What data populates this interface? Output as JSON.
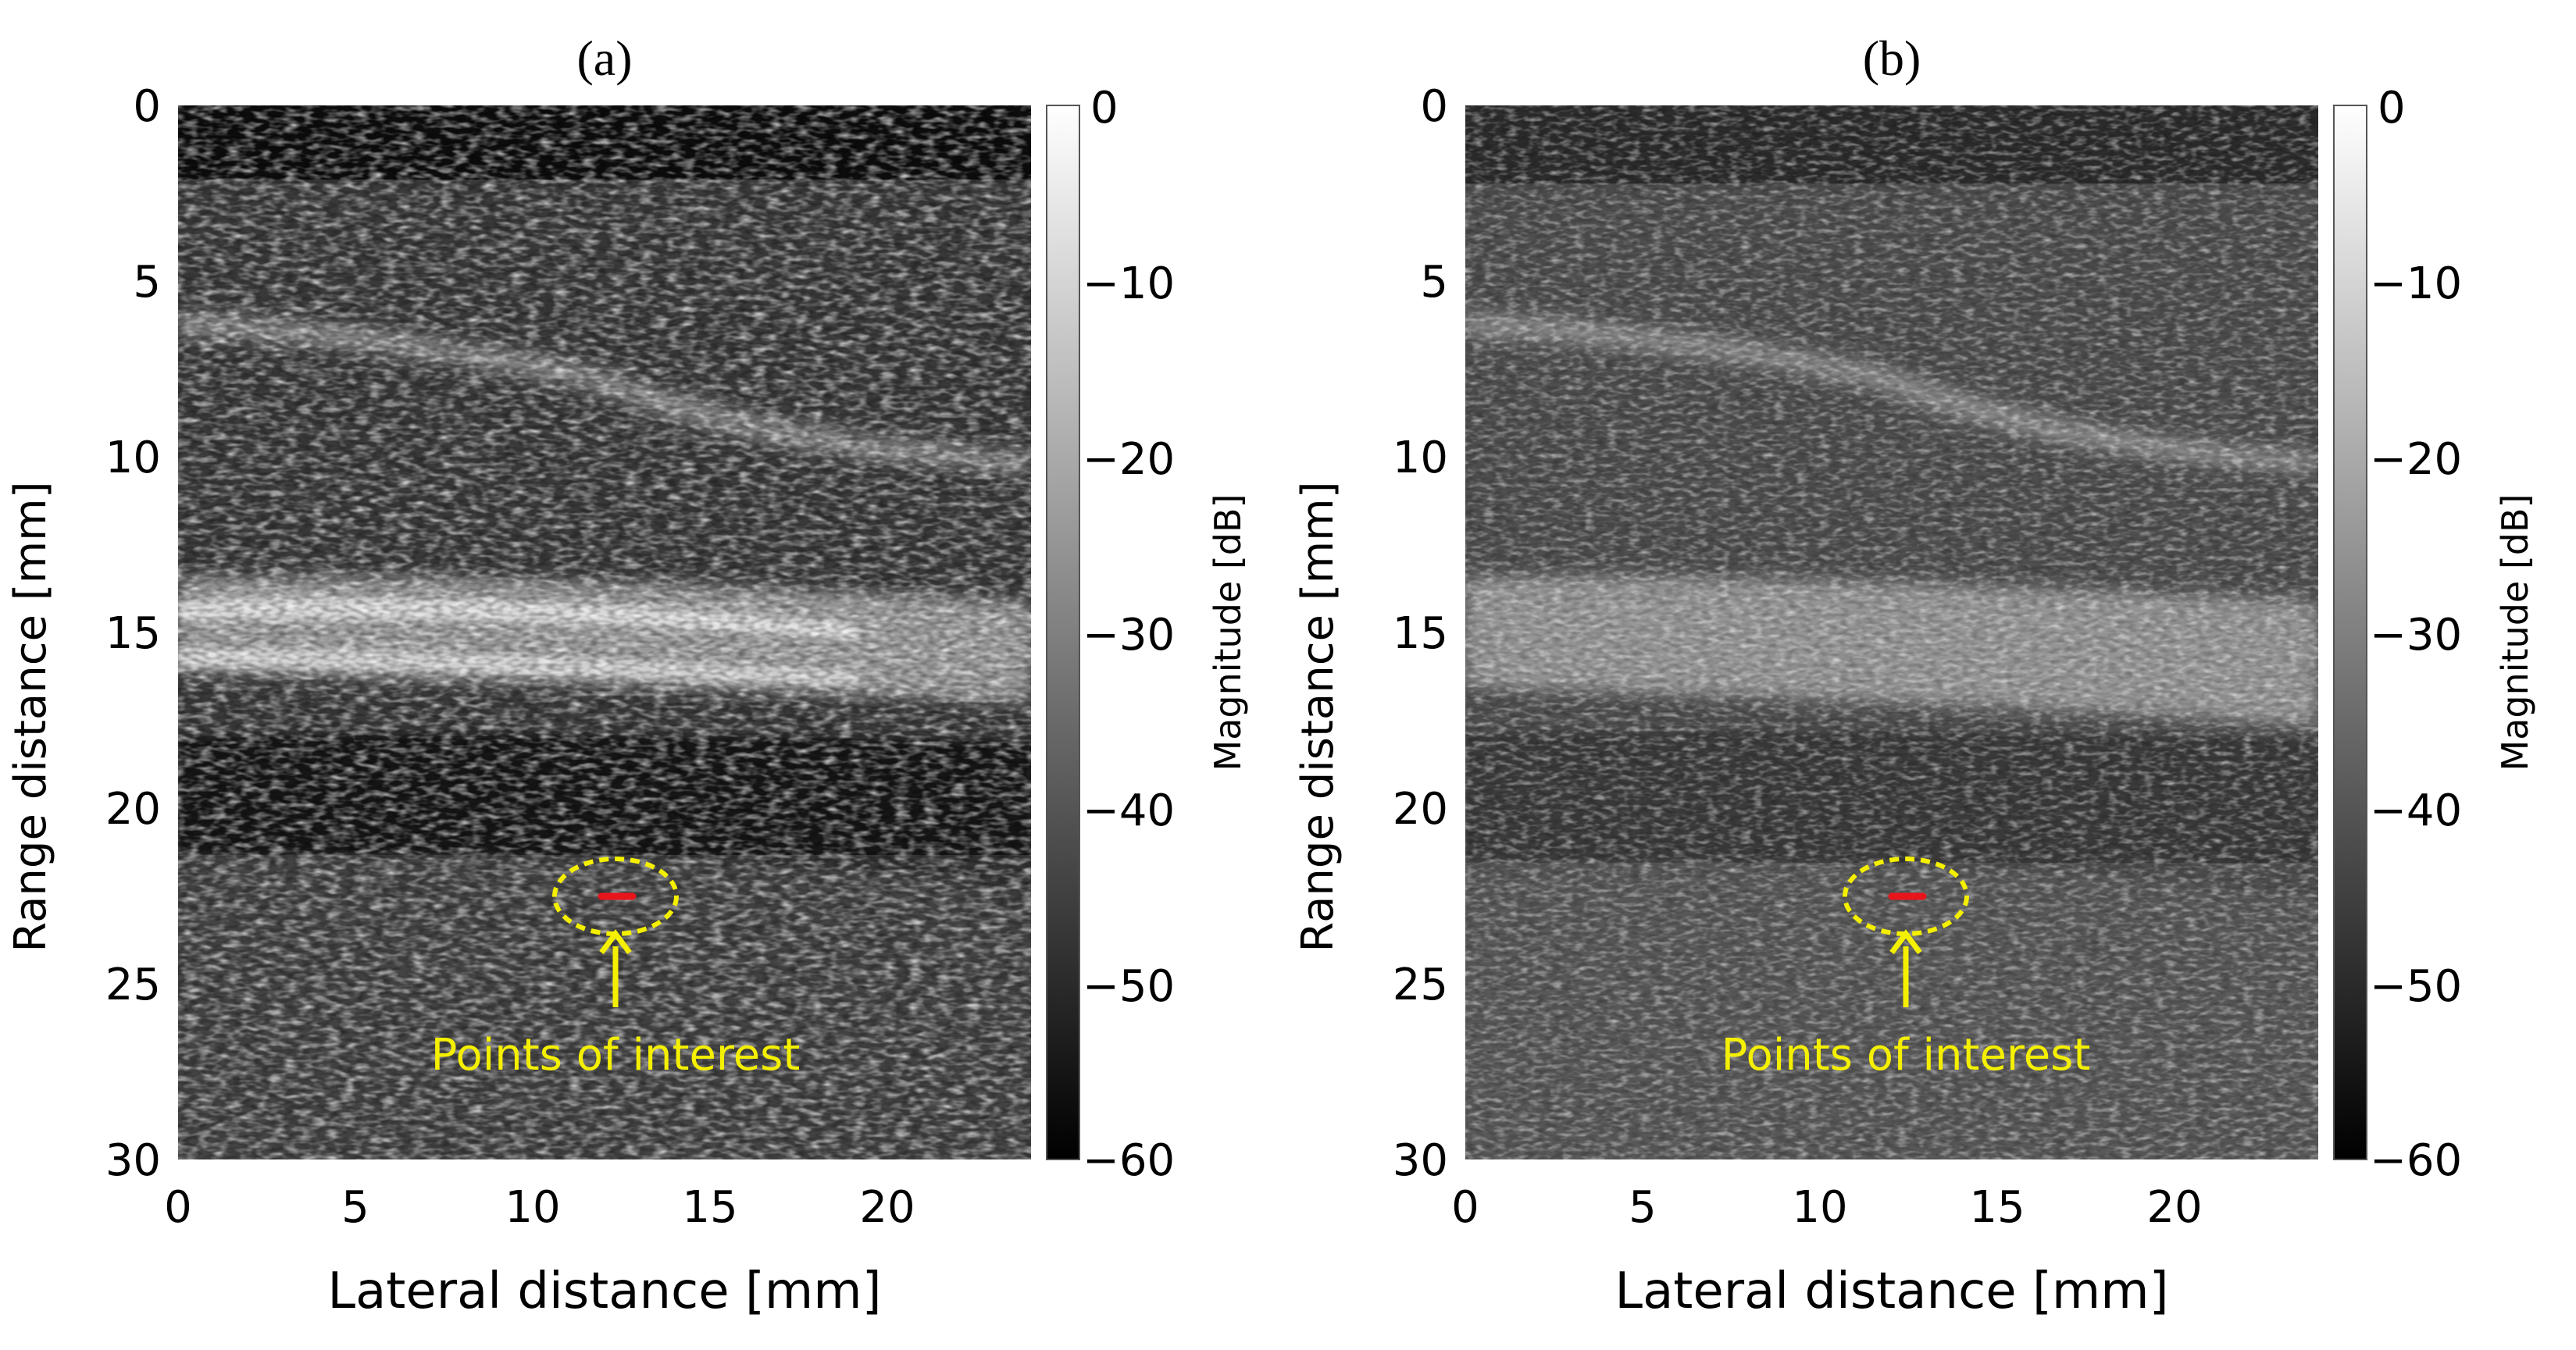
{
  "panels": [
    {
      "id": "a",
      "title": "(a)",
      "xlabel": "Lateral distance [mm]",
      "ylabel": "Range distance [mm]",
      "x_ticks": [
        "0",
        "5",
        "10",
        "15",
        "20"
      ],
      "y_ticks": [
        "0",
        "5",
        "10",
        "15",
        "20",
        "25",
        "30"
      ],
      "colorbar": {
        "label": "Magnitude [dB]",
        "ticks": [
          "0",
          "−10",
          "−20",
          "−30",
          "−40",
          "−50",
          "−60"
        ]
      },
      "annotation": "Points of interest"
    },
    {
      "id": "b",
      "title": "(b)",
      "xlabel": "Lateral distance [mm]",
      "ylabel": "Range distance [mm]",
      "x_ticks": [
        "0",
        "5",
        "10",
        "15",
        "20"
      ],
      "y_ticks": [
        "0",
        "5",
        "10",
        "15",
        "20",
        "25",
        "30"
      ],
      "colorbar": {
        "label": "Magnitude [dB]",
        "ticks": [
          "0",
          "−10",
          "−20",
          "−30",
          "−40",
          "−50",
          "−60"
        ]
      },
      "annotation": "Points of interest"
    }
  ],
  "colors": {
    "annotation": "#f5f000",
    "points": "#e8141c"
  }
}
